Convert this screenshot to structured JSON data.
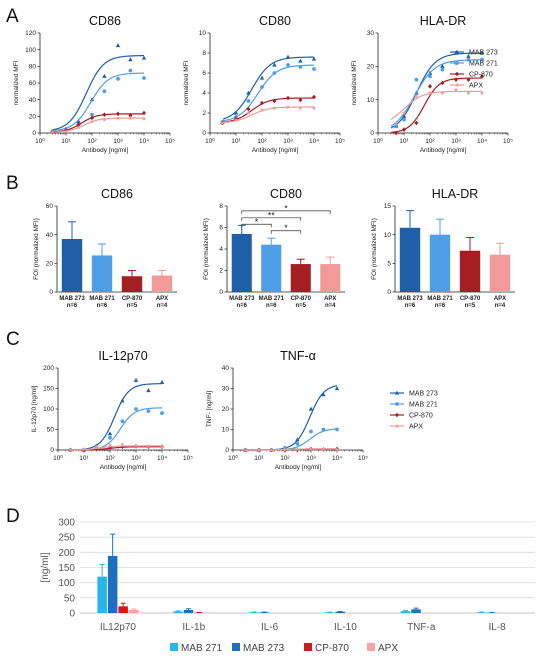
{
  "labels": {
    "panel_a": "A",
    "panel_b": "B",
    "panel_c": "C",
    "panel_d": "D"
  },
  "colors": {
    "MAB 273": "#1f5fa8",
    "MAB 271": "#4f9ee8",
    "CP-870": "#a51e22",
    "APX": "#f29a9a"
  },
  "legend_series": [
    "MAB 273",
    "MAB 271",
    "CP-870",
    "APX"
  ],
  "chart_data": [
    {
      "type": "line",
      "title": "CD86",
      "xlabel": "Antibody [ng/ml]",
      "ylabel": "normalized MFI",
      "xscale": "log",
      "xticks": [
        "10⁰",
        "10¹",
        "10²",
        "10³",
        "10⁴",
        "10⁵"
      ],
      "ylim": [
        0,
        120
      ],
      "yticks": [
        0,
        20,
        40,
        60,
        80,
        100,
        120
      ],
      "series": [
        {
          "name": "MAB 273",
          "curve": {
            "bottom": 2,
            "top": 93,
            "ec50": 60,
            "hill": 1.3
          },
          "x": [
            3,
            10,
            30,
            100,
            300,
            1000,
            3000,
            10000
          ],
          "y": [
            2,
            5,
            14,
            40,
            68,
            105,
            88,
            90
          ]
        },
        {
          "name": "MAB 271",
          "curve": {
            "bottom": 2,
            "top": 72,
            "ec50": 90,
            "hill": 1.3
          },
          "x": [
            3,
            10,
            30,
            100,
            300,
            1000,
            3000,
            10000
          ],
          "y": [
            2,
            3,
            10,
            22,
            50,
            65,
            75,
            66
          ]
        },
        {
          "name": "CP-870",
          "curve": {
            "bottom": 1,
            "top": 23,
            "ec50": 40,
            "hill": 1.5
          },
          "x": [
            3,
            10,
            30,
            100,
            300,
            1000,
            3000,
            10000
          ],
          "y": [
            1,
            3,
            10,
            18,
            22,
            23,
            21,
            24
          ]
        },
        {
          "name": "APX",
          "curve": {
            "bottom": 1,
            "top": 18,
            "ec50": 50,
            "hill": 1.5
          },
          "x": [
            3,
            10,
            30,
            100,
            300,
            1000,
            3000,
            10000
          ],
          "y": [
            1,
            2,
            7,
            14,
            16,
            18,
            18,
            17
          ]
        }
      ]
    },
    {
      "type": "line",
      "title": "CD80",
      "xlabel": "Antibody [ng/ml]",
      "ylabel": "normalized MFI",
      "xscale": "log",
      "xticks": [
        "10⁰",
        "10¹",
        "10²",
        "10³",
        "10⁴",
        "10⁵"
      ],
      "ylim": [
        0,
        10
      ],
      "yticks": [
        0,
        2,
        4,
        6,
        8,
        10
      ],
      "series": [
        {
          "name": "MAB 273",
          "curve": {
            "bottom": 1.1,
            "top": 7.6,
            "ec50": 40,
            "hill": 1.2
          },
          "x": [
            3,
            10,
            30,
            100,
            300,
            1000,
            3000,
            10000
          ],
          "y": [
            1.1,
            2.0,
            4.0,
            5.5,
            6.8,
            7.6,
            7.2,
            7.4
          ]
        },
        {
          "name": "MAB 271",
          "curve": {
            "bottom": 1.1,
            "top": 6.8,
            "ec50": 70,
            "hill": 1.2
          },
          "x": [
            3,
            10,
            30,
            100,
            300,
            1000,
            3000,
            10000
          ],
          "y": [
            1.1,
            1.6,
            3.2,
            4.6,
            6.0,
            6.8,
            6.6,
            6.4
          ]
        },
        {
          "name": "CP-870",
          "curve": {
            "bottom": 1.0,
            "top": 3.5,
            "ec50": 40,
            "hill": 1.3
          },
          "x": [
            3,
            10,
            30,
            100,
            300,
            1000,
            3000,
            10000
          ],
          "y": [
            1.0,
            1.4,
            2.4,
            3.0,
            3.2,
            3.5,
            3.3,
            3.6
          ]
        },
        {
          "name": "APX",
          "curve": {
            "bottom": 1.0,
            "top": 2.6,
            "ec50": 40,
            "hill": 1.3
          },
          "x": [
            3,
            10,
            30,
            100,
            300,
            1000,
            3000,
            10000
          ],
          "y": [
            1.0,
            1.3,
            2.0,
            2.3,
            2.5,
            2.6,
            2.5,
            2.5
          ]
        }
      ]
    },
    {
      "type": "line",
      "title": "HLA-DR",
      "xlabel": "Antibody [ng/ml]",
      "ylabel": "normalized MFI",
      "xscale": "log",
      "xticks": [
        "10⁰",
        "10¹",
        "10²",
        "10³",
        "10⁴",
        "10⁵"
      ],
      "ylim": [
        0,
        30
      ],
      "yticks": [
        0,
        10,
        20,
        30
      ],
      "series": [
        {
          "name": "MAB 273",
          "curve": {
            "bottom": 0,
            "top": 24,
            "ec50": 30,
            "hill": 1.2
          },
          "x": [
            5,
            10,
            30,
            100,
            300,
            1000,
            3000,
            10000
          ],
          "y": [
            2,
            5,
            12,
            18,
            20,
            24,
            23,
            24
          ]
        },
        {
          "name": "MAB 271",
          "curve": {
            "bottom": 0,
            "top": 22,
            "ec50": 25,
            "hill": 1.1
          },
          "x": [
            5,
            10,
            30,
            100,
            300,
            1000,
            3000,
            10000
          ],
          "y": [
            2,
            4,
            16,
            17,
            19,
            21,
            22,
            22
          ]
        },
        {
          "name": "CP-870",
          "curve": {
            "bottom": 0,
            "top": 16.5,
            "ec50": 60,
            "hill": 1.5
          },
          "x": [
            5,
            10,
            30,
            100,
            300,
            1000,
            3000,
            10000
          ],
          "y": [
            0,
            1,
            3,
            14,
            15,
            16,
            16,
            17
          ]
        },
        {
          "name": "APX",
          "curve": {
            "bottom": 2,
            "top": 12.5,
            "ec50": 10,
            "hill": 1.2
          },
          "x": [
            5,
            10,
            30,
            100,
            300,
            1000,
            3000,
            10000
          ],
          "y": [
            3,
            6,
            11,
            12,
            12,
            13,
            12,
            12
          ]
        }
      ]
    },
    {
      "type": "bar",
      "title": "CD86",
      "ylabel": "FOI (normalized MFI)",
      "ylim": [
        0,
        60
      ],
      "yticks": [
        0,
        20,
        40,
        60
      ],
      "categories": [
        "MAB 273",
        "MAB 271",
        "CP-870",
        "APX"
      ],
      "category_n": [
        "n=6",
        "n=6",
        "n=5",
        "n=4"
      ],
      "values": [
        37,
        25.5,
        11,
        11.5
      ],
      "errors": [
        12,
        8,
        4,
        3.5
      ]
    },
    {
      "type": "bar",
      "title": "CD80",
      "ylabel": "FOI (normalized MFI)",
      "ylim": [
        0,
        8
      ],
      "yticks": [
        0,
        2,
        4,
        6,
        8
      ],
      "categories": [
        "MAB 273",
        "MAB 271",
        "CP-870",
        "APX"
      ],
      "category_n": [
        "n=6",
        "n=6",
        "n=5",
        "n=4"
      ],
      "values": [
        5.4,
        4.4,
        2.6,
        2.6
      ],
      "errors": [
        0.8,
        0.6,
        0.45,
        0.65
      ],
      "significance": [
        {
          "from": 0,
          "to": 1,
          "label": "*"
        },
        {
          "from": 0,
          "to": 2,
          "label": "**"
        },
        {
          "from": 1,
          "to": 2,
          "label": "*"
        },
        {
          "from": 0,
          "to": 3,
          "label": "*"
        }
      ]
    },
    {
      "type": "bar",
      "title": "HLA-DR",
      "ylabel": "FOI (normalized MFI)",
      "ylim": [
        0,
        15
      ],
      "yticks": [
        0,
        5,
        10,
        15
      ],
      "categories": [
        "MAB 273",
        "MAB 271",
        "CP-870",
        "APX"
      ],
      "category_n": [
        "n=6",
        "n=6",
        "n=5",
        "n=4"
      ],
      "values": [
        11.2,
        10,
        7.2,
        6.5
      ],
      "errors": [
        3,
        2.7,
        2.3,
        2
      ]
    },
    {
      "type": "line",
      "title": "IL-12p70",
      "xlabel": "Antibody [ng/ml]",
      "ylabel": "IL-12p70 [ng/ml]",
      "xscale": "log",
      "xticks": [
        "10⁰",
        "10¹",
        "10²",
        "10³",
        "10⁴",
        "10⁵"
      ],
      "ylim": [
        0,
        200
      ],
      "yticks": [
        0,
        50,
        100,
        150,
        200
      ],
      "series": [
        {
          "name": "MAB 273",
          "curve": {
            "bottom": 0,
            "top": 162,
            "ec50": 150,
            "hill": 1.6
          },
          "x": [
            3,
            10,
            30,
            100,
            300,
            1000,
            3000,
            10000
          ],
          "y": [
            0,
            0,
            10,
            40,
            120,
            170,
            145,
            165
          ]
        },
        {
          "name": "MAB 271",
          "curve": {
            "bottom": 0,
            "top": 103,
            "ec50": 250,
            "hill": 1.6
          },
          "x": [
            3,
            10,
            30,
            100,
            300,
            1000,
            3000,
            10000
          ],
          "y": [
            0,
            0,
            5,
            30,
            70,
            100,
            95,
            90
          ]
        },
        {
          "name": "CP-870",
          "curve": {
            "bottom": 0,
            "top": 8,
            "ec50": 100,
            "hill": 1.5
          },
          "x": [
            3,
            10,
            30,
            100,
            300,
            1000,
            3000,
            10000
          ],
          "y": [
            0,
            0,
            3,
            6,
            8,
            9,
            8,
            8
          ]
        },
        {
          "name": "APX",
          "curve": {
            "bottom": 0,
            "top": 10,
            "ec50": 40,
            "hill": 1.5
          },
          "x": [
            3,
            10,
            30,
            100,
            300,
            1000,
            3000,
            10000
          ],
          "y": [
            0,
            2,
            8,
            12,
            14,
            10,
            9,
            8
          ]
        }
      ]
    },
    {
      "type": "line",
      "title": "TNF-α",
      "xlabel": "Antibody [ng/ml]",
      "ylabel": "TNF- [ng/ml]",
      "xscale": "log",
      "xticks": [
        "10⁰",
        "10¹",
        "10²",
        "10³",
        "10⁴",
        "10⁵"
      ],
      "ylim": [
        0,
        40
      ],
      "yticks": [
        0,
        10,
        20,
        30,
        40
      ],
      "series": [
        {
          "name": "MAB 273",
          "curve": {
            "bottom": 0,
            "top": 32,
            "ec50": 900,
            "hill": 1.6
          },
          "x": [
            3,
            10,
            30,
            100,
            300,
            1000,
            3000,
            10000
          ],
          "y": [
            0,
            0,
            0,
            1,
            5,
            20,
            27,
            30
          ]
        },
        {
          "name": "MAB 271",
          "curve": {
            "bottom": 0,
            "top": 10.5,
            "ec50": 900,
            "hill": 1.6
          },
          "x": [
            3,
            10,
            30,
            100,
            300,
            1000,
            3000,
            10000
          ],
          "y": [
            0,
            0,
            0,
            1,
            3,
            9,
            10,
            10
          ]
        },
        {
          "name": "CP-870",
          "curve": {
            "bottom": 0,
            "top": 0.5,
            "ec50": 100,
            "hill": 1.5
          },
          "x": [
            3,
            10,
            30,
            100,
            300,
            1000,
            3000,
            10000
          ],
          "y": [
            0,
            0,
            0,
            0,
            0,
            0.5,
            0.3,
            0.5
          ]
        },
        {
          "name": "APX",
          "curve": {
            "bottom": 0,
            "top": 0.5,
            "ec50": 100,
            "hill": 1.5
          },
          "x": [
            3,
            10,
            30,
            100,
            300,
            1000,
            3000,
            10000
          ],
          "y": [
            0,
            0,
            0,
            0.3,
            0.3,
            0.5,
            0.3,
            0.3
          ]
        }
      ]
    },
    {
      "type": "bar",
      "title": "",
      "ylabel": "[ng/ml]",
      "ylim": [
        0,
        300
      ],
      "yticks": [
        0,
        50,
        100,
        150,
        200,
        250,
        300
      ],
      "grid": true,
      "legend_position": "bottom",
      "categories": [
        "IL12p70",
        "IL-1b",
        "IL-6",
        "IL-10",
        "TNF-a",
        "IL-8"
      ],
      "series": [
        {
          "name": "MAB 271",
          "color": "#29b5ea",
          "values": [
            120,
            5,
            2,
            2,
            6,
            2
          ],
          "errors": [
            40,
            2,
            1,
            1,
            2,
            1
          ]
        },
        {
          "name": "MAB 273",
          "color": "#1f6fc0",
          "values": [
            188,
            10,
            2,
            4,
            12,
            1
          ],
          "errors": [
            72,
            4,
            1,
            1,
            4,
            1
          ]
        },
        {
          "name": "CP-870",
          "color": "#c81e1e",
          "values": [
            22,
            1,
            0,
            0,
            0,
            0
          ],
          "errors": [
            10,
            1,
            0,
            0,
            0,
            0
          ]
        },
        {
          "name": "APX",
          "color": "#f4a3a3",
          "values": [
            10,
            1,
            0,
            0,
            0,
            0
          ],
          "errors": [
            3,
            0,
            0,
            0,
            0,
            0
          ]
        }
      ]
    }
  ]
}
